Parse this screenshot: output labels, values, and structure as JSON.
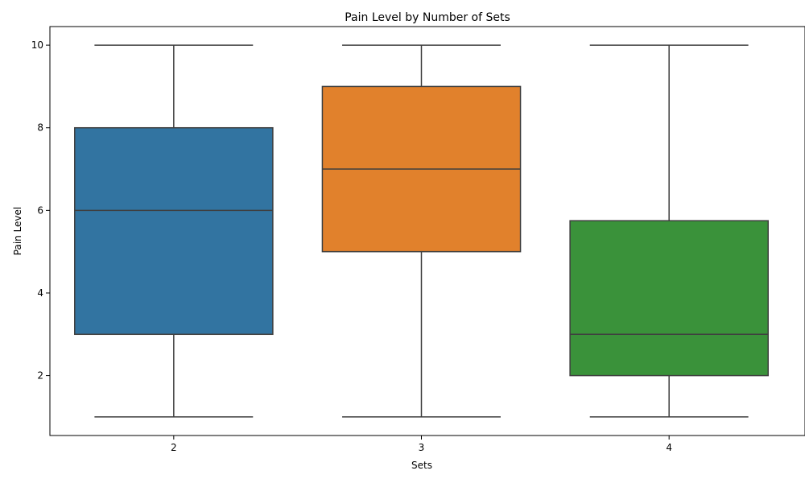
{
  "chart_data": {
    "type": "box",
    "title": "Pain Level by Number of Sets",
    "xlabel": "Sets",
    "ylabel": "Pain Level",
    "categories": [
      "2",
      "3",
      "4"
    ],
    "boxes": [
      {
        "category": "2",
        "min": 1,
        "q1": 3,
        "median": 6,
        "q3": 8,
        "max": 10,
        "color": "#3274a1"
      },
      {
        "category": "3",
        "min": 1,
        "q1": 5,
        "median": 7,
        "q3": 9,
        "max": 10,
        "color": "#e1812c"
      },
      {
        "category": "4",
        "min": 1,
        "q1": 2,
        "median": 3,
        "q3": 5.75,
        "max": 10,
        "color": "#3a923a"
      }
    ],
    "y_ticks": [
      2,
      4,
      6,
      8,
      10
    ],
    "ylim": [
      0.55,
      10.45
    ],
    "grid": false,
    "line_color": "#3f3f3f"
  }
}
